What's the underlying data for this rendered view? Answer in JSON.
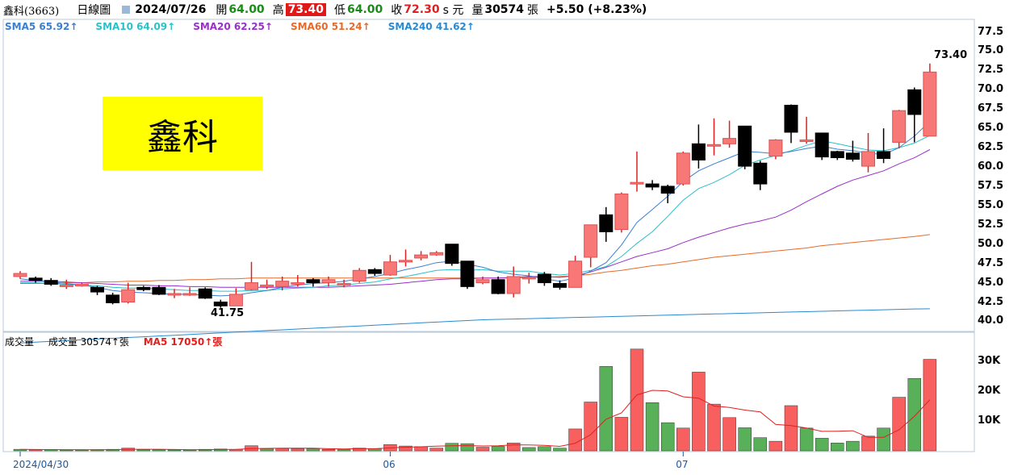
{
  "header": {
    "stock": "鑫科(3663)",
    "period": "日線圖",
    "date": "2024/07/26",
    "open_label": "開",
    "open": "64.00",
    "high_label": "高",
    "high": "73.40",
    "low_label": "低",
    "low": "64.00",
    "close_label": "收",
    "close": "72.30",
    "unit": "s 元",
    "vol_label": "量",
    "volume": "30574",
    "vol_unit": "張",
    "change": "+5.50 (+8.23%)"
  },
  "sma": [
    {
      "label": "SMA5 65.92↑",
      "color": "#3b7fd0"
    },
    {
      "label": "SMA10 64.09↑",
      "color": "#2cc0c8"
    },
    {
      "label": "SMA20 62.25↑",
      "color": "#9b2fcc"
    },
    {
      "label": "SMA60 51.24↑",
      "color": "#e86a2a"
    },
    {
      "label": "SMA240 41.62↑",
      "color": "#2a8ad0"
    }
  ],
  "volume_header": {
    "name": "成交量",
    "vol_text": "成交量 30574↑張",
    "ma5_text": "MA5 17050↑張"
  },
  "title_box": "鑫科",
  "annotations": {
    "high": "73.40",
    "low": "41.75"
  },
  "colors": {
    "up": "#f87878",
    "down": "#000000",
    "vol_up": "#f86060",
    "vol_down": "#58b058",
    "vol_ma": "#e02020"
  },
  "chart_data": {
    "type": "candlestick",
    "ylim": [
      39,
      78.5
    ],
    "y_ticks": [
      40.0,
      42.5,
      45.0,
      47.5,
      50.0,
      52.5,
      55.0,
      57.5,
      60.0,
      62.5,
      65.0,
      67.5,
      70.0,
      72.5,
      75.0,
      77.5
    ],
    "x_ticks": [
      {
        "label": "2024/04/30",
        "index": 0
      },
      {
        "label": "06",
        "index": 24
      },
      {
        "label": "07",
        "index": 43
      }
    ],
    "candles": [
      [
        45.8,
        46.2,
        46.5,
        45.5
      ],
      [
        45.6,
        45.3,
        45.8,
        45.0
      ],
      [
        45.3,
        44.8,
        45.6,
        44.6
      ],
      [
        44.7,
        44.7,
        45.4,
        44.2
      ],
      [
        44.8,
        44.8,
        45.0,
        44.5
      ],
      [
        44.4,
        43.8,
        44.6,
        43.4
      ],
      [
        43.4,
        42.4,
        43.7,
        42.2
      ],
      [
        42.5,
        44.1,
        45.0,
        42.3
      ],
      [
        44.4,
        44.1,
        44.6,
        43.9
      ],
      [
        44.4,
        43.5,
        44.7,
        43.4
      ],
      [
        43.6,
        43.6,
        44.2,
        43.0
      ],
      [
        43.6,
        43.6,
        44.4,
        43.3
      ],
      [
        44.2,
        43.0,
        44.4,
        42.9
      ],
      [
        42.5,
        42.0,
        42.8,
        41.75
      ],
      [
        42.0,
        43.5,
        44.3,
        42.0
      ],
      [
        44.1,
        45.0,
        47.7,
        44.0
      ],
      [
        44.7,
        44.7,
        45.4,
        44.2
      ],
      [
        44.5,
        45.2,
        45.8,
        44.0
      ],
      [
        45.0,
        45.0,
        46.0,
        44.5
      ],
      [
        45.4,
        45.0,
        45.6,
        44.5
      ],
      [
        45.0,
        45.4,
        45.8,
        44.5
      ],
      [
        44.9,
        44.9,
        45.4,
        44.4
      ],
      [
        45.2,
        46.6,
        46.9,
        45.0
      ],
      [
        46.7,
        46.2,
        46.9,
        45.9
      ],
      [
        46.0,
        47.7,
        48.6,
        45.9
      ],
      [
        47.9,
        47.9,
        49.3,
        47.1
      ],
      [
        48.2,
        48.6,
        49.1,
        47.9
      ],
      [
        48.6,
        48.9,
        49.1,
        48.5
      ],
      [
        50.0,
        47.5,
        50.0,
        47.2
      ],
      [
        47.8,
        44.5,
        47.8,
        44.2
      ],
      [
        45.0,
        45.4,
        45.8,
        44.8
      ],
      [
        45.4,
        43.6,
        45.8,
        43.5
      ],
      [
        43.6,
        45.8,
        47.1,
        43.1
      ],
      [
        45.6,
        45.7,
        46.3,
        44.9
      ],
      [
        46.1,
        45.0,
        46.4,
        44.6
      ],
      [
        44.9,
        44.4,
        45.3,
        44.1
      ],
      [
        44.4,
        47.8,
        48.5,
        44.4
      ],
      [
        48.3,
        52.5,
        52.5,
        47.0
      ],
      [
        53.8,
        51.6,
        54.8,
        50.3
      ],
      [
        51.9,
        56.5,
        56.7,
        51.5
      ],
      [
        58.0,
        58.0,
        62.0,
        56.8
      ],
      [
        57.8,
        57.4,
        58.3,
        57.0
      ],
      [
        57.5,
        56.6,
        57.7,
        55.3
      ],
      [
        57.8,
        61.8,
        62.0,
        57.6
      ],
      [
        63.0,
        60.9,
        65.5,
        59.8
      ],
      [
        62.9,
        62.9,
        66.3,
        61.5
      ],
      [
        63.0,
        63.7,
        66.0,
        62.5
      ],
      [
        65.3,
        60.1,
        65.3,
        59.7
      ],
      [
        60.5,
        57.8,
        60.8,
        57.0
      ],
      [
        61.4,
        63.5,
        63.6,
        61.0
      ],
      [
        68.0,
        64.5,
        68.1,
        63.1
      ],
      [
        63.5,
        63.5,
        66.5,
        63.0
      ],
      [
        64.4,
        61.3,
        64.4,
        60.9
      ],
      [
        62.0,
        61.2,
        62.1,
        60.9
      ],
      [
        61.8,
        61.0,
        63.4,
        60.7
      ],
      [
        60.1,
        62.0,
        64.4,
        59.3
      ],
      [
        62.0,
        61.1,
        65.0,
        60.5
      ],
      [
        63.2,
        67.3,
        67.4,
        62.4
      ],
      [
        70.0,
        66.8,
        70.3,
        63.2
      ],
      [
        64.0,
        72.3,
        73.4,
        64.0
      ]
    ],
    "volume": [
      [
        500,
        "d"
      ],
      [
        400,
        "u"
      ],
      [
        400,
        "d"
      ],
      [
        300,
        "d"
      ],
      [
        300,
        "d"
      ],
      [
        400,
        "d"
      ],
      [
        500,
        "d"
      ],
      [
        900,
        "u"
      ],
      [
        400,
        "d"
      ],
      [
        400,
        "d"
      ],
      [
        300,
        "d"
      ],
      [
        300,
        "d"
      ],
      [
        500,
        "d"
      ],
      [
        600,
        "d"
      ],
      [
        500,
        "u"
      ],
      [
        1700,
        "u"
      ],
      [
        700,
        "d"
      ],
      [
        800,
        "u"
      ],
      [
        700,
        "u"
      ],
      [
        700,
        "d"
      ],
      [
        500,
        "u"
      ],
      [
        400,
        "d"
      ],
      [
        900,
        "u"
      ],
      [
        700,
        "d"
      ],
      [
        2100,
        "u"
      ],
      [
        1600,
        "u"
      ],
      [
        1400,
        "u"
      ],
      [
        900,
        "u"
      ],
      [
        2500,
        "d"
      ],
      [
        2400,
        "d"
      ],
      [
        1200,
        "u"
      ],
      [
        1500,
        "d"
      ],
      [
        2600,
        "u"
      ],
      [
        1100,
        "d"
      ],
      [
        1400,
        "d"
      ],
      [
        900,
        "d"
      ],
      [
        7300,
        "u"
      ],
      [
        16300,
        "u"
      ],
      [
        28200,
        "d"
      ],
      [
        11200,
        "u"
      ],
      [
        34000,
        "u"
      ],
      [
        16100,
        "d"
      ],
      [
        9400,
        "d"
      ],
      [
        7600,
        "u"
      ],
      [
        26300,
        "u"
      ],
      [
        15600,
        "u"
      ],
      [
        11100,
        "u"
      ],
      [
        7700,
        "d"
      ],
      [
        4400,
        "d"
      ],
      [
        3200,
        "u"
      ],
      [
        15100,
        "u"
      ],
      [
        7600,
        "d"
      ],
      [
        4200,
        "d"
      ],
      [
        2600,
        "d"
      ],
      [
        3200,
        "d"
      ],
      [
        4900,
        "u"
      ],
      [
        7600,
        "d"
      ],
      [
        17900,
        "u"
      ],
      [
        24200,
        "d"
      ],
      [
        30574,
        "u"
      ]
    ],
    "vol_ylim": [
      0,
      38000
    ],
    "vol_y_ticks": [
      {
        "v": 10000,
        "label": "10K"
      },
      {
        "v": 20000,
        "label": "20K"
      },
      {
        "v": 30000,
        "label": "30K"
      }
    ],
    "sma5": [
      45.5,
      45.3,
      45.1,
      44.9,
      44.7,
      44.4,
      44.0,
      43.8,
      43.7,
      43.6,
      43.5,
      43.5,
      43.4,
      43.3,
      43.4,
      43.7,
      44.0,
      44.4,
      44.7,
      44.9,
      45.0,
      45.2,
      45.5,
      45.8,
      46.2,
      46.7,
      47.1,
      47.6,
      47.8,
      47.4,
      47.0,
      46.4,
      46.1,
      45.9,
      45.5,
      45.2,
      45.6,
      46.5,
      47.6,
      49.9,
      52.8,
      54.5,
      56.2,
      58.1,
      59.5,
      60.4,
      61.2,
      62.0,
      61.9,
      61.7,
      62.0,
      62.4,
      62.7,
      62.3,
      62.1,
      61.8,
      61.6,
      62.5,
      64.0,
      65.92
    ],
    "sma10": [
      45.0,
      45.0,
      44.9,
      44.8,
      44.7,
      44.6,
      44.4,
      44.3,
      44.3,
      44.2,
      44.1,
      44.0,
      44.0,
      43.9,
      43.9,
      44.0,
      44.0,
      44.2,
      44.3,
      44.4,
      44.6,
      44.7,
      44.9,
      45.1,
      45.5,
      45.8,
      46.2,
      46.6,
      46.7,
      46.6,
      46.7,
      46.5,
      46.5,
      46.5,
      46.2,
      46.0,
      46.2,
      46.6,
      47.1,
      48.4,
      50.1,
      51.6,
      53.6,
      55.7,
      57.2,
      58.0,
      59.0,
      60.2,
      60.9,
      61.5,
      62.1,
      62.8,
      63.4,
      63.0,
      62.6,
      62.2,
      62.1,
      62.5,
      63.1,
      64.09
    ],
    "sma20": [
      45.2,
      45.2,
      45.2,
      45.1,
      45.0,
      44.9,
      44.8,
      44.7,
      44.7,
      44.6,
      44.6,
      44.5,
      44.5,
      44.4,
      44.4,
      44.4,
      44.4,
      44.4,
      44.4,
      44.4,
      44.4,
      44.5,
      44.6,
      44.7,
      44.8,
      45.0,
      45.2,
      45.4,
      45.5,
      45.5,
      45.6,
      45.6,
      45.7,
      45.8,
      45.8,
      45.7,
      45.9,
      46.4,
      47.0,
      47.7,
      48.4,
      48.9,
      49.4,
      50.2,
      50.9,
      51.5,
      52.1,
      52.6,
      53.0,
      53.5,
      54.4,
      55.5,
      56.5,
      57.5,
      58.3,
      58.9,
      59.5,
      60.4,
      61.2,
      62.25
    ],
    "sma60": [
      44.9,
      44.9,
      44.9,
      45.0,
      45.0,
      45.1,
      45.1,
      45.2,
      45.2,
      45.3,
      45.3,
      45.4,
      45.4,
      45.5,
      45.5,
      45.6,
      45.6,
      45.6,
      45.6,
      45.6,
      45.6,
      45.6,
      45.6,
      45.6,
      45.6,
      45.6,
      45.6,
      45.6,
      45.6,
      45.6,
      45.6,
      45.6,
      45.6,
      45.7,
      45.7,
      45.8,
      45.9,
      46.1,
      46.4,
      46.6,
      46.9,
      47.2,
      47.4,
      47.7,
      48.0,
      48.3,
      48.5,
      48.7,
      48.9,
      49.1,
      49.3,
      49.5,
      49.8,
      50.0,
      50.2,
      50.4,
      50.6,
      50.8,
      51.0,
      51.24
    ],
    "sma240": [
      37.2,
      37.3,
      37.4,
      37.5,
      37.6,
      37.7,
      37.8,
      37.9,
      38.0,
      38.1,
      38.2,
      38.3,
      38.4,
      38.5,
      38.6,
      38.7,
      38.8,
      38.9,
      39.0,
      39.1,
      39.2,
      39.3,
      39.4,
      39.5,
      39.6,
      39.7,
      39.8,
      39.9,
      40.0,
      40.1,
      40.2,
      40.25,
      40.3,
      40.35,
      40.4,
      40.45,
      40.5,
      40.55,
      40.6,
      40.65,
      40.7,
      40.75,
      40.8,
      40.85,
      40.9,
      40.95,
      41.0,
      41.05,
      41.1,
      41.15,
      41.2,
      41.25,
      41.3,
      41.35,
      41.4,
      41.45,
      41.5,
      41.55,
      41.6,
      41.62
    ],
    "vol_ma5": [
      450,
      420,
      400,
      380,
      380,
      360,
      380,
      500,
      500,
      500,
      440,
      380,
      380,
      420,
      460,
      720,
      800,
      860,
      880,
      880,
      700,
      620,
      720,
      700,
      960,
      1180,
      1340,
      1540,
      1700,
      1760,
      1620,
      1680,
      2000,
      1960,
      1840,
      1480,
      2520,
      5380,
      10560,
      12660,
      18700,
      20220,
      20000,
      18060,
      17600,
      14960,
      14480,
      13600,
      13020,
      8820,
      8400,
      7600,
      6500,
      6540,
      6720,
      4500,
      4500,
      7000,
      11560,
      17050
    ]
  }
}
